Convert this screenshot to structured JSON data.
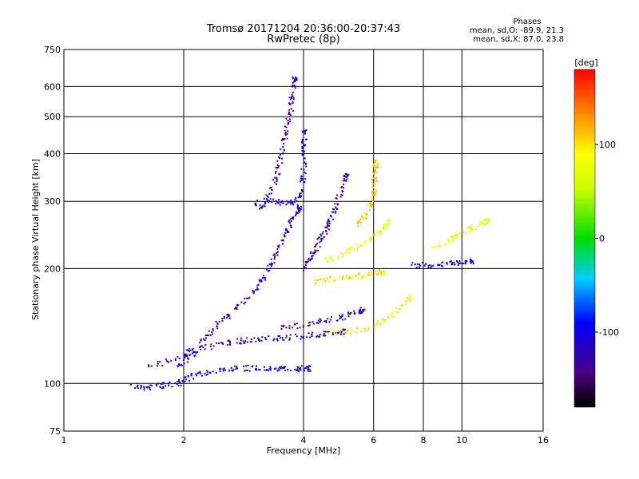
{
  "chart_data": {
    "type": "scatter",
    "title": "Tromsø 20171204 20:36:00-20:37:43",
    "subtitle": "RwPretec (8p)",
    "xlabel": "Frequency [MHz]",
    "ylabel": "Stationary phase Virtual Height [km]",
    "x_scale": "log",
    "y_scale": "log",
    "xlim": [
      1,
      16
    ],
    "ylim": [
      75,
      750
    ],
    "x_ticks": [
      1,
      2,
      4,
      6,
      8,
      10,
      16
    ],
    "x_tick_labels": [
      "1",
      "2",
      "4",
      "6",
      "8",
      "10",
      "16"
    ],
    "y_ticks": [
      75,
      100,
      200,
      300,
      400,
      500,
      600,
      750
    ],
    "y_tick_labels": [
      "75",
      "100",
      "200",
      "300",
      "400",
      "500",
      "600",
      "750"
    ],
    "grid": true,
    "stats": {
      "heading": "Phases",
      "line_o": "mean, sd,O: -89.9, 21.3",
      "line_x": "mean, sd,X:  87.0, 23.8"
    },
    "colorbar": {
      "label": "[deg]",
      "range": [
        -180,
        180
      ],
      "ticks": [
        100,
        0,
        -100
      ],
      "tick_labels": [
        "100",
        "0",
        "-100"
      ],
      "placement": "right"
    },
    "traces": [
      {
        "phase": -110,
        "points": [
          [
            1.45,
            99
          ],
          [
            1.55,
            98
          ],
          [
            1.65,
            98
          ],
          [
            1.75,
            99
          ],
          [
            1.85,
            100
          ],
          [
            1.95,
            101
          ],
          [
            2.05,
            104
          ],
          [
            2.15,
            106
          ],
          [
            2.3,
            108
          ],
          [
            2.5,
            109
          ],
          [
            2.7,
            110
          ],
          [
            2.9,
            110
          ],
          [
            3.1,
            110
          ],
          [
            3.3,
            110
          ],
          [
            3.5,
            110
          ],
          [
            3.7,
            110
          ],
          [
            3.9,
            110
          ],
          [
            4.1,
            110
          ]
        ]
      },
      {
        "phase": -120,
        "points": [
          [
            1.6,
            112
          ],
          [
            1.8,
            114
          ],
          [
            1.95,
            118
          ],
          [
            2.05,
            122
          ],
          [
            2.2,
            124
          ],
          [
            2.4,
            126
          ],
          [
            2.6,
            128
          ],
          [
            2.8,
            130
          ],
          [
            3.0,
            131
          ],
          [
            3.2,
            132
          ],
          [
            3.5,
            132
          ],
          [
            3.8,
            133
          ],
          [
            4.1,
            134
          ],
          [
            4.4,
            135
          ],
          [
            4.7,
            136
          ],
          [
            5.0,
            137
          ]
        ]
      },
      {
        "phase": -115,
        "points": [
          [
            1.9,
            110
          ],
          [
            2.0,
            115
          ],
          [
            2.1,
            120
          ],
          [
            2.2,
            128
          ],
          [
            2.3,
            135
          ],
          [
            2.4,
            142
          ],
          [
            2.55,
            150
          ],
          [
            2.7,
            158
          ],
          [
            2.85,
            166
          ],
          [
            3.0,
            175
          ],
          [
            3.1,
            185
          ],
          [
            3.2,
            195
          ],
          [
            3.3,
            208
          ],
          [
            3.4,
            220
          ],
          [
            3.5,
            235
          ],
          [
            3.6,
            250
          ],
          [
            3.7,
            265
          ],
          [
            3.8,
            280
          ],
          [
            3.9,
            290
          ]
        ]
      },
      {
        "phase": -125,
        "points": [
          [
            3.2,
            300
          ],
          [
            3.3,
            320
          ],
          [
            3.4,
            345
          ],
          [
            3.45,
            370
          ],
          [
            3.5,
            400
          ],
          [
            3.55,
            430
          ],
          [
            3.6,
            460
          ],
          [
            3.65,
            490
          ],
          [
            3.7,
            520
          ],
          [
            3.72,
            560
          ],
          [
            3.75,
            600
          ],
          [
            3.78,
            630
          ]
        ]
      },
      {
        "phase": -105,
        "points": [
          [
            3.0,
            300
          ],
          [
            3.1,
            290
          ],
          [
            3.2,
            305
          ],
          [
            3.4,
            300
          ],
          [
            3.6,
            296
          ],
          [
            3.8,
            300
          ],
          [
            3.9,
            310
          ],
          [
            3.95,
            330
          ],
          [
            3.98,
            350
          ],
          [
            3.99,
            380
          ],
          [
            4.0,
            420
          ],
          [
            4.0,
            460
          ]
        ]
      },
      {
        "phase": -120,
        "points": [
          [
            4.0,
            200
          ],
          [
            4.1,
            210
          ],
          [
            4.2,
            220
          ],
          [
            4.3,
            230
          ],
          [
            4.4,
            240
          ],
          [
            4.5,
            250
          ],
          [
            4.6,
            262
          ],
          [
            4.7,
            275
          ],
          [
            4.8,
            290
          ],
          [
            4.9,
            310
          ],
          [
            5.0,
            330
          ],
          [
            5.1,
            350
          ]
        ]
      },
      {
        "phase": -118,
        "points": [
          [
            3.5,
            140
          ],
          [
            3.8,
            142
          ],
          [
            4.1,
            144
          ],
          [
            4.4,
            146
          ],
          [
            4.7,
            148
          ],
          [
            5.0,
            150
          ],
          [
            5.3,
            153
          ],
          [
            5.6,
            156
          ]
        ]
      },
      {
        "phase": 100,
        "points": [
          [
            4.2,
            185
          ],
          [
            4.5,
            187
          ],
          [
            4.8,
            189
          ],
          [
            5.1,
            190
          ],
          [
            5.4,
            192
          ],
          [
            5.7,
            193
          ],
          [
            6.0,
            195
          ],
          [
            6.3,
            197
          ]
        ]
      },
      {
        "phase": 80,
        "points": [
          [
            4.5,
            210
          ],
          [
            4.8,
            215
          ],
          [
            5.1,
            220
          ],
          [
            5.4,
            228
          ],
          [
            5.7,
            236
          ],
          [
            6.0,
            245
          ],
          [
            6.3,
            255
          ],
          [
            6.5,
            265
          ]
        ]
      },
      {
        "phase": 95,
        "points": [
          [
            4.6,
            136
          ],
          [
            5.0,
            137
          ],
          [
            5.4,
            138
          ],
          [
            5.8,
            140
          ],
          [
            6.2,
            145
          ],
          [
            6.6,
            152
          ],
          [
            7.0,
            160
          ],
          [
            7.4,
            168
          ]
        ]
      },
      {
        "phase": 110,
        "points": [
          [
            5.4,
            260
          ],
          [
            5.6,
            270
          ],
          [
            5.8,
            285
          ],
          [
            5.9,
            300
          ],
          [
            6.0,
            320
          ],
          [
            6.0,
            340
          ],
          [
            6.05,
            360
          ],
          [
            6.05,
            380
          ]
        ]
      },
      {
        "phase": -100,
        "points": [
          [
            7.5,
            205
          ],
          [
            8.0,
            205
          ],
          [
            8.5,
            205
          ],
          [
            9.0,
            206
          ],
          [
            9.5,
            207
          ],
          [
            10.0,
            208
          ],
          [
            10.5,
            210
          ]
        ]
      },
      {
        "phase": 70,
        "points": [
          [
            8.5,
            230
          ],
          [
            9.0,
            235
          ],
          [
            9.5,
            240
          ],
          [
            10.0,
            248
          ],
          [
            10.5,
            255
          ],
          [
            11.0,
            262
          ],
          [
            11.5,
            268
          ]
        ]
      }
    ]
  }
}
